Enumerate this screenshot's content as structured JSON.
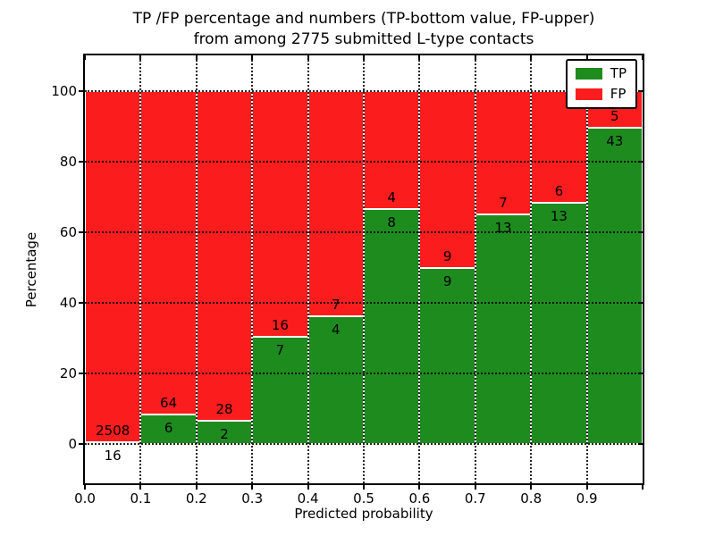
{
  "title": {
    "line1": "TP /FP percentage and numbers (TP-bottom value, FP-upper)",
    "line2": "from among 2775 submitted L-type contacts"
  },
  "axes": {
    "xlabel": "Predicted probability",
    "ylabel": "Percentage",
    "x_ticks": [
      {
        "pos": 0.0,
        "label": "0.0"
      },
      {
        "pos": 0.1,
        "label": "0.1"
      },
      {
        "pos": 0.2,
        "label": "0.2"
      },
      {
        "pos": 0.3,
        "label": "0.3"
      },
      {
        "pos": 0.4,
        "label": "0.4"
      },
      {
        "pos": 0.5,
        "label": "0.5"
      },
      {
        "pos": 0.6,
        "label": "0.6"
      },
      {
        "pos": 0.7,
        "label": "0.7"
      },
      {
        "pos": 0.8,
        "label": "0.8"
      },
      {
        "pos": 0.9,
        "label": "0.9"
      },
      {
        "pos": 1.0,
        "label": ""
      }
    ],
    "y_ticks": [
      0,
      20,
      40,
      60,
      80,
      100
    ]
  },
  "legend": {
    "items": [
      {
        "label": "TP",
        "color": "#1e8b1e"
      },
      {
        "label": "FP",
        "color": "#fb1d1d"
      }
    ]
  },
  "chart_data": {
    "type": "bar",
    "stacked": true,
    "normalized_to_percent": true,
    "title": "TP /FP percentage and numbers (TP-bottom value, FP-upper) from among 2775 submitted L-type contacts",
    "xlabel": "Predicted probability",
    "ylabel": "Percentage",
    "xlim": [
      0.0,
      1.0
    ],
    "ylim": [
      -11,
      110
    ],
    "grid": "dotted",
    "legend_position": "upper right",
    "total_contacts": 2775,
    "bin_edges": [
      0.0,
      0.1,
      0.2,
      0.3,
      0.4,
      0.5,
      0.6,
      0.7,
      0.8,
      0.9,
      1.0
    ],
    "categories": [
      "0.0-0.1",
      "0.1-0.2",
      "0.2-0.3",
      "0.3-0.4",
      "0.4-0.5",
      "0.5-0.6",
      "0.6-0.7",
      "0.7-0.8",
      "0.8-0.9",
      "0.9-1.0"
    ],
    "series": [
      {
        "name": "TP",
        "color": "#1e8b1e",
        "counts": [
          16,
          6,
          2,
          7,
          4,
          8,
          9,
          13,
          13,
          43
        ],
        "percent": [
          0.63,
          8.57,
          6.67,
          30.43,
          36.36,
          66.67,
          50.0,
          65.0,
          68.42,
          89.58
        ]
      },
      {
        "name": "FP",
        "color": "#fb1d1d",
        "counts": [
          2508,
          64,
          28,
          16,
          7,
          4,
          9,
          7,
          6,
          5
        ],
        "percent": [
          99.37,
          91.43,
          93.33,
          69.57,
          63.64,
          33.33,
          50.0,
          35.0,
          31.58,
          10.42
        ]
      }
    ]
  }
}
